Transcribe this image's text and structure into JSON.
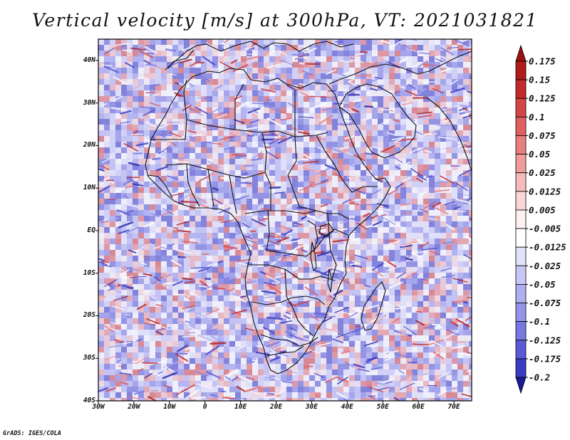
{
  "title": "Vertical velocity [m/s] at 300hPa, VT: 2021031821",
  "credit": "GrADS: IGES/COLA",
  "map": {
    "region": "Africa",
    "lon_range": [
      -30,
      75
    ],
    "lat_range": [
      -40,
      45
    ],
    "lat_ticks": [
      {
        "lat": 40,
        "label": "40N"
      },
      {
        "lat": 30,
        "label": "30N"
      },
      {
        "lat": 20,
        "label": "20N"
      },
      {
        "lat": 10,
        "label": "10N"
      },
      {
        "lat": 0,
        "label": "EQ"
      },
      {
        "lat": -10,
        "label": "10S"
      },
      {
        "lat": -20,
        "label": "20S"
      },
      {
        "lat": -30,
        "label": "30S"
      },
      {
        "lat": -40,
        "label": "40S"
      }
    ],
    "lon_ticks": [
      {
        "lon": -30,
        "label": "30W"
      },
      {
        "lon": -20,
        "label": "20W"
      },
      {
        "lon": -10,
        "label": "10W"
      },
      {
        "lon": 0,
        "label": "0"
      },
      {
        "lon": 10,
        "label": "10E"
      },
      {
        "lon": 20,
        "label": "20E"
      },
      {
        "lon": 30,
        "label": "30E"
      },
      {
        "lon": 40,
        "label": "40E"
      },
      {
        "lon": 50,
        "label": "50E"
      },
      {
        "lon": 60,
        "label": "60E"
      },
      {
        "lon": 70,
        "label": "70E"
      }
    ]
  },
  "colorbar": {
    "levels": [
      {
        "label": "0.175",
        "color": "#b01a1a"
      },
      {
        "label": "0.15",
        "color": "#c52a2a"
      },
      {
        "label": "0.125",
        "color": "#d54545"
      },
      {
        "label": "0.1",
        "color": "#e06060"
      },
      {
        "label": "0.075",
        "color": "#e87e7e"
      },
      {
        "label": "0.05",
        "color": "#f09c9c"
      },
      {
        "label": "0.025",
        "color": "#f6baba"
      },
      {
        "label": "0.0125",
        "color": "#fad6d6"
      },
      {
        "label": "0.005",
        "color": "#fdf0f0"
      },
      {
        "label": "-0.005",
        "color": "#ffffff"
      },
      {
        "label": "-0.0125",
        "color": "#e2e2fb"
      },
      {
        "label": "-0.025",
        "color": "#c8c8f6"
      },
      {
        "label": "-0.05",
        "color": "#aeaef1"
      },
      {
        "label": "-0.075",
        "color": "#9494ea"
      },
      {
        "label": "-0.1",
        "color": "#7878e2"
      },
      {
        "label": "-0.125",
        "color": "#5a5ad6"
      },
      {
        "label": "-0.175",
        "color": "#3a3ac4"
      },
      {
        "label": "-0.2",
        "color": "#2222a8"
      }
    ],
    "top_arrow_color": "#9c1010",
    "bottom_arrow_color": "#1a1a96"
  },
  "colors": {
    "rising": "#d64a4a",
    "sinking": "#6a6ae0",
    "coastline": "#111111"
  }
}
